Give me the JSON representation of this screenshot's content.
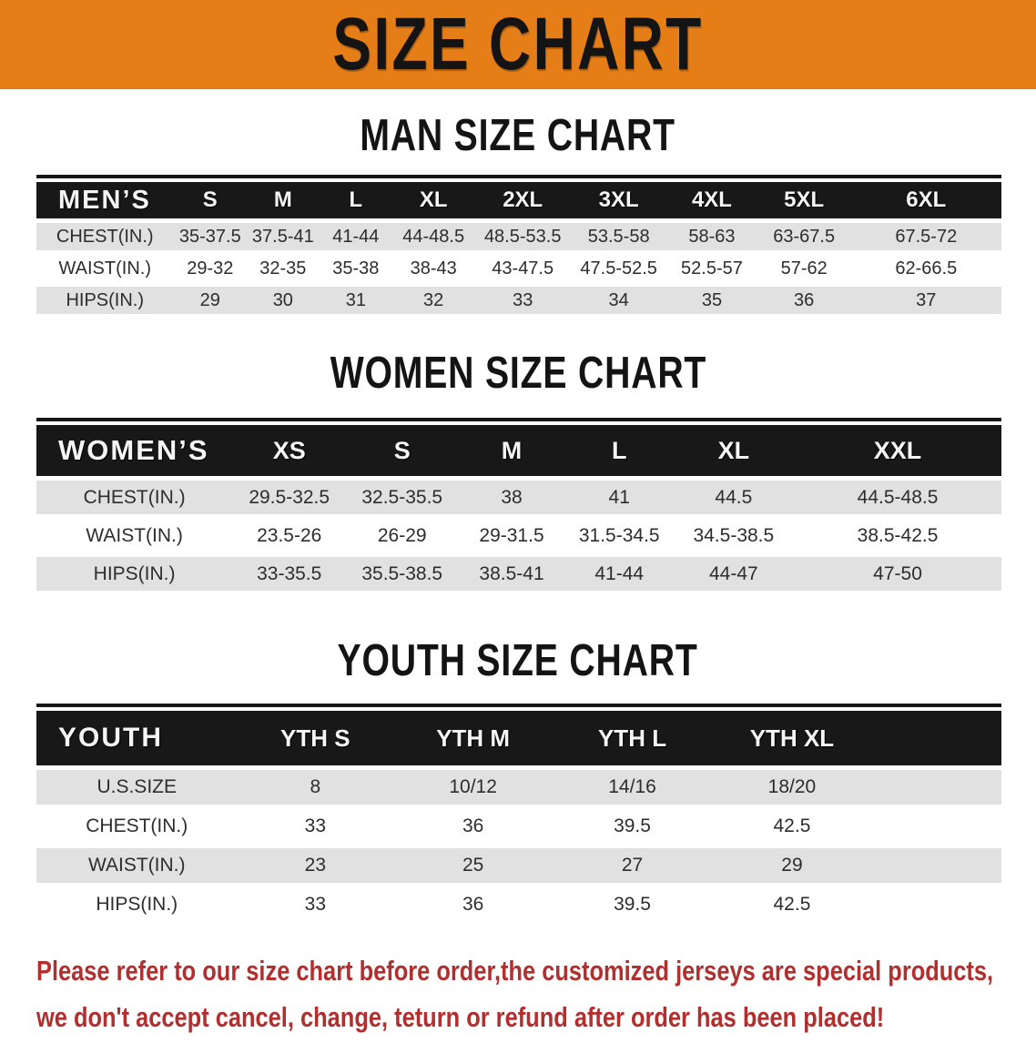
{
  "banner": {
    "title": "SIZE CHART"
  },
  "sections": [
    {
      "heading": "MAN SIZE CHART",
      "table": {
        "header": [
          "MEN’S",
          "S",
          "M",
          "L",
          "XL",
          "2XL",
          "3XL",
          "4XL",
          "5XL",
          "6XL"
        ],
        "rows": [
          [
            "CHEST(IN.)",
            "35-37.5",
            "37.5-41",
            "41-44",
            "44-48.5",
            "48.5-53.5",
            "53.5-58",
            "58-63",
            "63-67.5",
            "67.5-72"
          ],
          [
            "WAIST(IN.)",
            "29-32",
            "32-35",
            "35-38",
            "38-43",
            "43-47.5",
            "47.5-52.5",
            "52.5-57",
            "57-62",
            "62-66.5"
          ],
          [
            "HIPS(IN.)",
            "29",
            "30",
            "31",
            "32",
            "33",
            "34",
            "35",
            "36",
            "37"
          ]
        ]
      }
    },
    {
      "heading": "WOMEN SIZE CHART",
      "table": {
        "header": [
          "WOMEN’S",
          "XS",
          "S",
          "M",
          "L",
          "XL",
          "XXL"
        ],
        "rows": [
          [
            "CHEST(IN.)",
            "29.5-32.5",
            "32.5-35.5",
            "38",
            "41",
            "44.5",
            "44.5-48.5"
          ],
          [
            "WAIST(IN.)",
            "23.5-26",
            "26-29",
            "29-31.5",
            "31.5-34.5",
            "34.5-38.5",
            "38.5-42.5"
          ],
          [
            "HIPS(IN.)",
            "33-35.5",
            "35.5-38.5",
            "38.5-41",
            "41-44",
            "44-47",
            "47-50"
          ]
        ]
      }
    },
    {
      "heading": "YOUTH SIZE CHART",
      "table": {
        "header": [
          "YOUTH",
          "YTH S",
          "YTH M",
          "YTH L",
          "YTH XL"
        ],
        "rows": [
          [
            "U.S.SIZE",
            "8",
            "10/12",
            "14/16",
            "18/20"
          ],
          [
            "CHEST(IN.)",
            "33",
            "36",
            "39.5",
            "42.5"
          ],
          [
            "WAIST(IN.)",
            "23",
            "25",
            "27",
            "29"
          ],
          [
            "HIPS(IN.)",
            "33",
            "36",
            "39.5",
            "42.5"
          ]
        ]
      }
    }
  ],
  "footer": {
    "line1": "Please refer to our size chart before order,the customized jerseys are special products,",
    "line2": "we don't accept cancel, change, teturn or refund after order has been placed!"
  },
  "colors": {
    "banner_bg": "#E67E17",
    "header_bar": "#181818",
    "stripe": "#E1E1E1",
    "note_text": "#B03030",
    "heading_ink": "#141414"
  }
}
